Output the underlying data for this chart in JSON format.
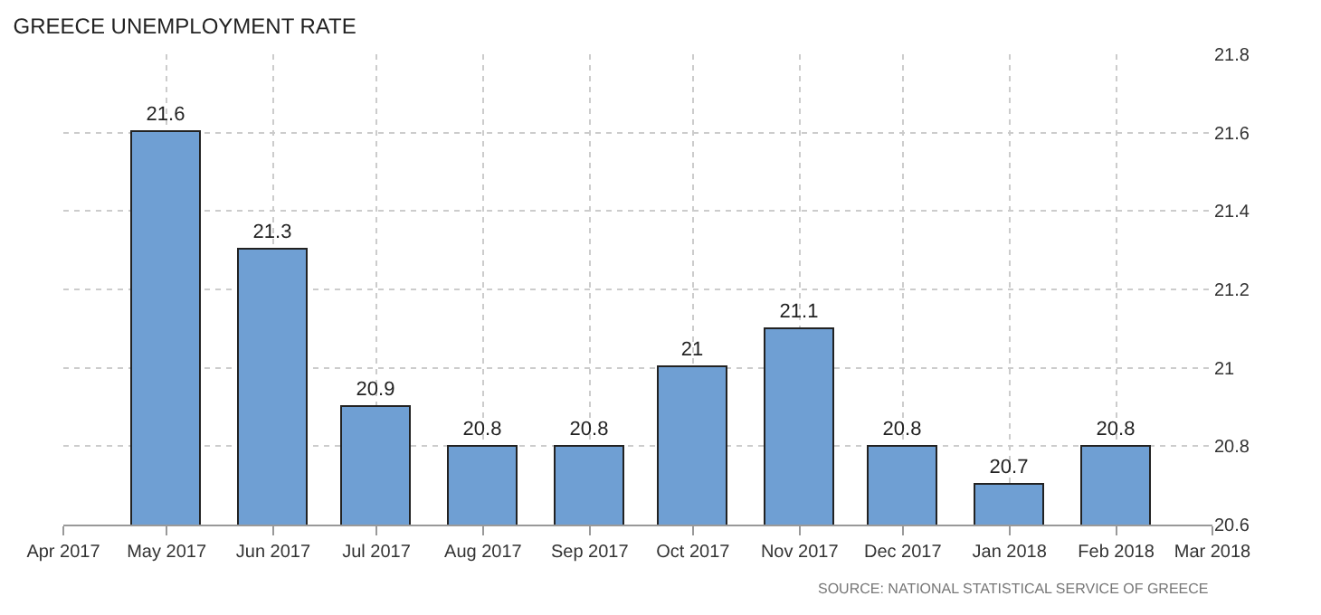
{
  "chart_data": {
    "type": "bar",
    "title": "GREECE UNEMPLOYMENT RATE",
    "x": [
      "2017-05",
      "2017-06",
      "2017-07",
      "2017-08",
      "2017-09",
      "2017-10",
      "2017-11",
      "2017-12",
      "2018-01",
      "2018-02"
    ],
    "values": [
      21.6,
      21.3,
      20.9,
      20.8,
      20.8,
      21,
      21.1,
      20.8,
      20.7,
      20.8
    ],
    "color": "#6f9fd3",
    "data_labels": true,
    "xlim": [
      "2017-04",
      "2018-03"
    ],
    "xticks": [
      {
        "value": "2017-04",
        "label": "Apr 2017"
      },
      {
        "value": "2017-05",
        "label": "May 2017"
      },
      {
        "value": "2017-06",
        "label": "Jun 2017"
      },
      {
        "value": "2017-07",
        "label": "Jul 2017"
      },
      {
        "value": "2017-08",
        "label": "Aug 2017"
      },
      {
        "value": "2017-09",
        "label": "Sep 2017"
      },
      {
        "value": "2017-10",
        "label": "Oct 2017"
      },
      {
        "value": "2017-11",
        "label": "Nov 2017"
      },
      {
        "value": "2017-12",
        "label": "Dec 2017"
      },
      {
        "value": "2018-01",
        "label": "Jan 2018"
      },
      {
        "value": "2018-02",
        "label": "Feb 2018"
      },
      {
        "value": "2018-03",
        "label": "Mar 2018"
      }
    ],
    "ylim": [
      20.6,
      21.8
    ],
    "yticks": [
      20.6,
      20.8,
      21,
      21.2,
      21.4,
      21.6,
      21.8
    ],
    "grid": true,
    "annotations": [
      "SOURCE: NATIONAL STATISTICAL SERVICE OF GREECE"
    ]
  }
}
